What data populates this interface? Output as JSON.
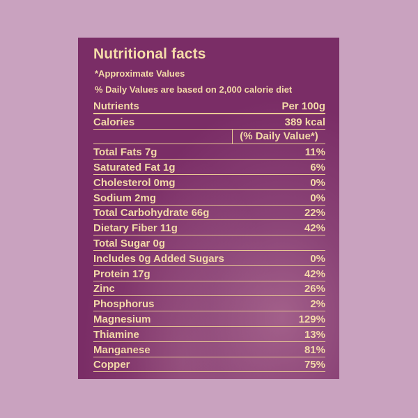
{
  "panel": {
    "title": "Nutritional facts",
    "note_approx": "*Approximate Values",
    "note_daily": "% Daily Values are based on 2,000 calorie diet"
  },
  "table": {
    "header": {
      "label": "Nutrients",
      "value": "Per 100g"
    },
    "calories": {
      "label": "Calories",
      "value": "389 kcal"
    },
    "daily_value_header": "(% Daily Value*)",
    "rows": [
      {
        "label": "Total Fats  7g",
        "value": "11%"
      },
      {
        "label": "Saturated Fat  1g",
        "value": "6%"
      },
      {
        "label": "Cholesterol  0mg",
        "value": "0%"
      },
      {
        "label": "Sodium  2mg",
        "value": "0%"
      },
      {
        "label": "Total Carbohydrate  66g",
        "value": "22%"
      },
      {
        "label": "Dietary Fiber  11g",
        "value": "42%"
      },
      {
        "label": "Total Sugar  0g",
        "value": ""
      },
      {
        "label": "Includes 0g Added Sugars",
        "value": "0%"
      },
      {
        "label": "Protein  17g",
        "value": "42%"
      },
      {
        "label": "Zinc",
        "value": "26%"
      },
      {
        "label": "Phosphorus",
        "value": "2%"
      },
      {
        "label": "Magnesium",
        "value": "129%"
      },
      {
        "label": "Thiamine",
        "value": "13%"
      },
      {
        "label": "Manganese",
        "value": "81%"
      },
      {
        "label": "Copper",
        "value": "75%"
      }
    ]
  },
  "colors": {
    "background": "#c9a2bf",
    "panel": "#7a2d66",
    "text": "#f3d9a8"
  }
}
